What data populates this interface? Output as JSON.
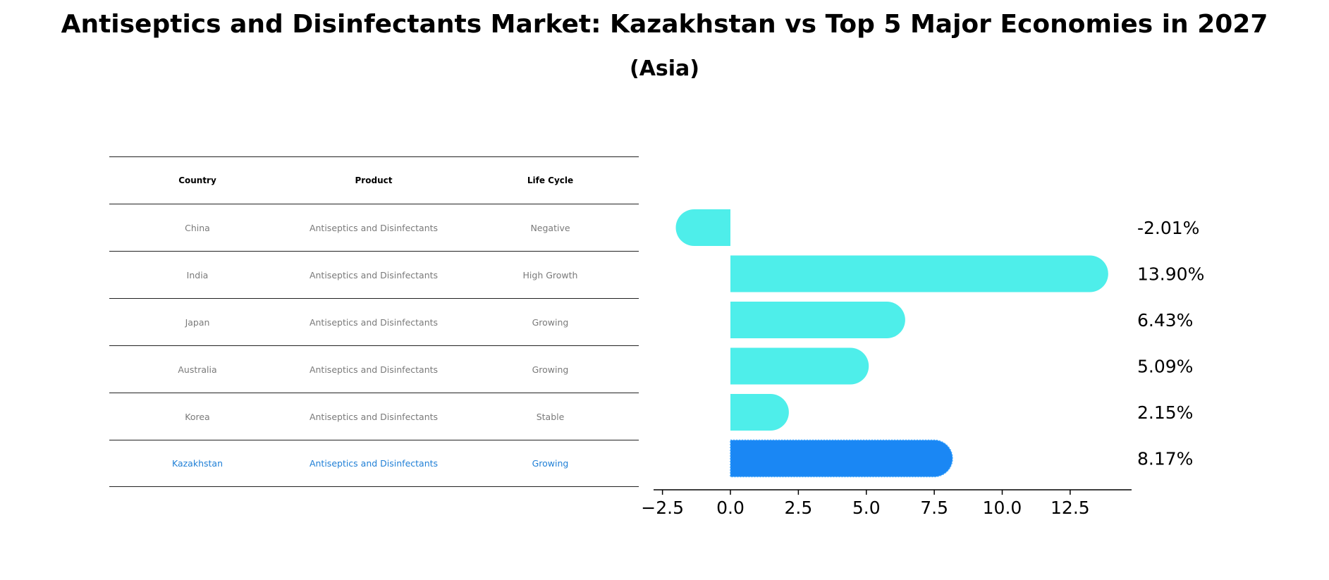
{
  "title": "Antiseptics and Disinfectants Market: Kazakhstan vs Top 5 Major Economies in 2027",
  "subtitle": "(Asia)",
  "table": {
    "headers": [
      "Country",
      "Product",
      "Life Cycle"
    ],
    "rows": [
      [
        "China",
        "Antiseptics and Disinfectants",
        "Negative"
      ],
      [
        "India",
        "Antiseptics and Disinfectants",
        "High Growth"
      ],
      [
        "Japan",
        "Antiseptics and Disinfectants",
        "Growing"
      ],
      [
        "Australia",
        "Antiseptics and Disinfectants",
        "Growing"
      ],
      [
        "Korea",
        "Antiseptics and Disinfectants",
        "Stable"
      ],
      [
        "Kazakhstan",
        "Antiseptics and Disinfectants",
        "Growing"
      ]
    ],
    "highlight_color": "#1f7fd6"
  },
  "chart_data": {
    "type": "bar",
    "orientation": "horizontal",
    "categories": [
      "China",
      "India",
      "Japan",
      "Australia",
      "Korea",
      "Kazakhstan"
    ],
    "values": [
      -2.01,
      13.9,
      6.43,
      5.09,
      2.15,
      8.17
    ],
    "value_labels": [
      "-2.01%",
      "13.90%",
      "6.43%",
      "5.09%",
      "2.15%",
      "8.17%"
    ],
    "xticks": [
      -2.5,
      0.0,
      2.5,
      5.0,
      7.5,
      10.0,
      12.5
    ],
    "xtick_labels": [
      "−2.5",
      "0.0",
      "2.5",
      "5.0",
      "7.5",
      "10.0",
      "12.5"
    ],
    "xlim": [
      -2.85,
      14.6
    ],
    "colors": {
      "default": "#4eeeea",
      "highlight": "#1a87f4"
    },
    "highlight_index": 5,
    "grid": false
  }
}
